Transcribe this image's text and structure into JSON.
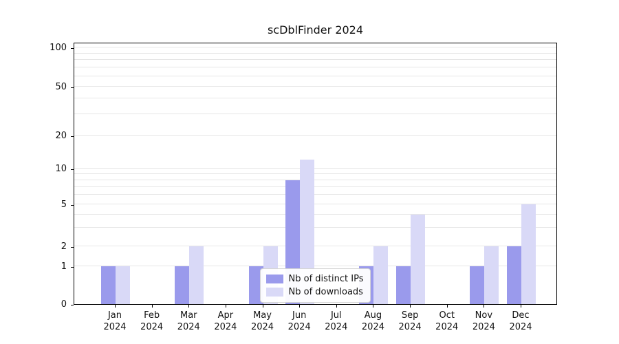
{
  "title": "scDblFinder 2024",
  "chart_data": {
    "type": "bar",
    "title": "scDblFinder 2024",
    "categories": [
      "Jan 2024",
      "Feb 2024",
      "Mar 2024",
      "Apr 2024",
      "May 2024",
      "Jun 2024",
      "Jul 2024",
      "Aug 2024",
      "Sep 2024",
      "Oct 2024",
      "Nov 2024",
      "Dec 2024"
    ],
    "series": [
      {
        "name": "Nb of distinct IPs",
        "color": "#9a9aec",
        "values": [
          1,
          0,
          1,
          0,
          1,
          8,
          0,
          1,
          1,
          0,
          1,
          2
        ]
      },
      {
        "name": "Nb of downloads",
        "color": "#d9d9f7",
        "values": [
          1,
          0,
          2,
          0,
          2,
          12,
          0,
          2,
          4,
          0,
          2,
          5
        ]
      }
    ],
    "xlabel": "",
    "ylabel": "",
    "yscale": "log",
    "yticks": [
      0,
      1,
      2,
      5,
      10,
      20,
      50,
      100
    ],
    "ylim": [
      0,
      120
    ],
    "grid": true,
    "legend_position": "lower center"
  }
}
